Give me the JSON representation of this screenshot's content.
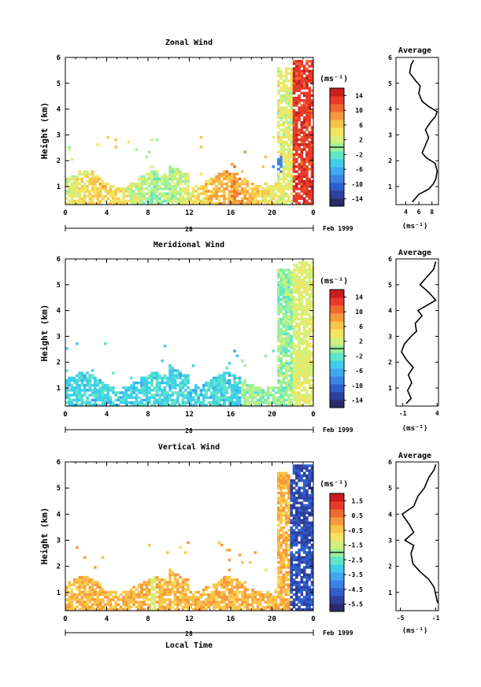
{
  "date_label": "Feb 1999",
  "day_label": "28",
  "time_axis_label": "Local Time",
  "height_axis_label": "Height (km)",
  "units_label": "(ms⁻¹)",
  "average_units_label": "(ms⁻¹)",
  "colormap": [
    "#2a2a6a",
    "#2e3f9c",
    "#2f5fcf",
    "#3b83e8",
    "#3fa8f0",
    "#3fcfe8",
    "#5fe6c8",
    "#9cf09a",
    "#d4f07a",
    "#f4e460",
    "#f8c44a",
    "#f89a3c",
    "#f06a30",
    "#e83a2a",
    "#c81e1e"
  ],
  "chart_data": [
    {
      "type": "heatmap",
      "title": "Zonal Wind",
      "xlabel": "",
      "ylabel": "Height (km)",
      "x_ticks": [
        "0",
        "4",
        "8",
        "12",
        "16",
        "20",
        "0"
      ],
      "y_ticks": [
        "1",
        "2",
        "3",
        "4",
        "5",
        "6"
      ],
      "xlim": [
        0,
        24
      ],
      "ylim": [
        0.3,
        6
      ],
      "colorbar": {
        "label": "(ms⁻¹)",
        "ticks": [
          "14",
          "10",
          "6",
          "2",
          "-2",
          "-6",
          "-10",
          "-14"
        ],
        "min": -16,
        "max": 16
      },
      "average": {
        "title": "Average",
        "x_ticks": [
          "4",
          "6",
          "8"
        ],
        "xlim": [
          2.5,
          9
        ],
        "profile": [
          [
            5.0,
            0.4
          ],
          [
            6.0,
            0.7
          ],
          [
            7.5,
            0.9
          ],
          [
            8.2,
            1.1
          ],
          [
            8.6,
            1.3
          ],
          [
            8.8,
            1.6
          ],
          [
            8.5,
            1.9
          ],
          [
            7.2,
            2.1
          ],
          [
            6.5,
            2.3
          ],
          [
            7.0,
            2.6
          ],
          [
            7.5,
            2.9
          ],
          [
            7.0,
            3.2
          ],
          [
            7.8,
            3.5
          ],
          [
            8.5,
            3.7
          ],
          [
            8.8,
            3.9
          ],
          [
            7.5,
            4.1
          ],
          [
            6.5,
            4.3
          ],
          [
            6.0,
            4.6
          ],
          [
            6.2,
            4.9
          ],
          [
            5.5,
            5.1
          ],
          [
            4.6,
            5.4
          ],
          [
            4.8,
            5.7
          ],
          [
            5.2,
            5.9
          ]
        ]
      }
    },
    {
      "type": "heatmap",
      "title": "Meridional Wind",
      "xlabel": "",
      "ylabel": "Height (km)",
      "x_ticks": [
        "0",
        "4",
        "8",
        "12",
        "16",
        "20",
        "0"
      ],
      "y_ticks": [
        "1",
        "2",
        "3",
        "4",
        "5",
        "6"
      ],
      "xlim": [
        0,
        24
      ],
      "ylim": [
        0.3,
        6
      ],
      "colorbar": {
        "label": "(ms⁻¹)",
        "ticks": [
          "14",
          "10",
          "6",
          "2",
          "-2",
          "-6",
          "-10",
          "-14"
        ],
        "min": -16,
        "max": 16
      },
      "average": {
        "title": "Average",
        "x_ticks": [
          "-1",
          "4"
        ],
        "xlim": [
          -2,
          4.2
        ],
        "profile": [
          [
            -0.5,
            0.4
          ],
          [
            0.2,
            0.6
          ],
          [
            -0.3,
            0.9
          ],
          [
            0.3,
            1.2
          ],
          [
            -0.2,
            1.5
          ],
          [
            0.5,
            1.8
          ],
          [
            -0.5,
            2.1
          ],
          [
            -1.2,
            2.4
          ],
          [
            -0.8,
            2.7
          ],
          [
            0.2,
            3.0
          ],
          [
            1.0,
            3.2
          ],
          [
            0.8,
            3.5
          ],
          [
            1.8,
            3.8
          ],
          [
            1.2,
            4.0
          ],
          [
            2.5,
            4.2
          ],
          [
            3.8,
            4.4
          ],
          [
            2.8,
            4.7
          ],
          [
            1.5,
            5.0
          ],
          [
            2.5,
            5.3
          ],
          [
            3.5,
            5.6
          ],
          [
            3.8,
            5.9
          ]
        ]
      }
    },
    {
      "type": "heatmap",
      "title": "Vertical Wind",
      "xlabel": "Local Time",
      "ylabel": "Height (km)",
      "x_ticks": [
        "0",
        "4",
        "8",
        "12",
        "16",
        "20",
        "0"
      ],
      "y_ticks": [
        "1",
        "2",
        "3",
        "4",
        "5",
        "6"
      ],
      "xlim": [
        0,
        24
      ],
      "ylim": [
        0.3,
        6
      ],
      "colorbar": {
        "label": "(ms⁻¹)",
        "ticks": [
          "1.5",
          "0.5",
          "-0.5",
          "-1.5",
          "-2.5",
          "-3.5",
          "-4.5",
          "-5.5"
        ],
        "min": -6,
        "max": 2
      },
      "average": {
        "title": "Average",
        "x_ticks": [
          "-5",
          "-1"
        ],
        "xlim": [
          -5.5,
          -0.7
        ],
        "profile": [
          [
            -0.8,
            0.6
          ],
          [
            -1.0,
            0.9
          ],
          [
            -1.2,
            1.2
          ],
          [
            -1.8,
            1.5
          ],
          [
            -2.8,
            1.8
          ],
          [
            -3.6,
            2.1
          ],
          [
            -3.8,
            2.5
          ],
          [
            -3.5,
            2.8
          ],
          [
            -4.5,
            3.0
          ],
          [
            -3.5,
            3.3
          ],
          [
            -4.0,
            3.6
          ],
          [
            -4.8,
            4.0
          ],
          [
            -3.5,
            4.3
          ],
          [
            -3.0,
            4.7
          ],
          [
            -2.3,
            5.0
          ],
          [
            -1.8,
            5.4
          ],
          [
            -1.2,
            5.7
          ],
          [
            -1.0,
            5.9
          ]
        ]
      }
    }
  ]
}
